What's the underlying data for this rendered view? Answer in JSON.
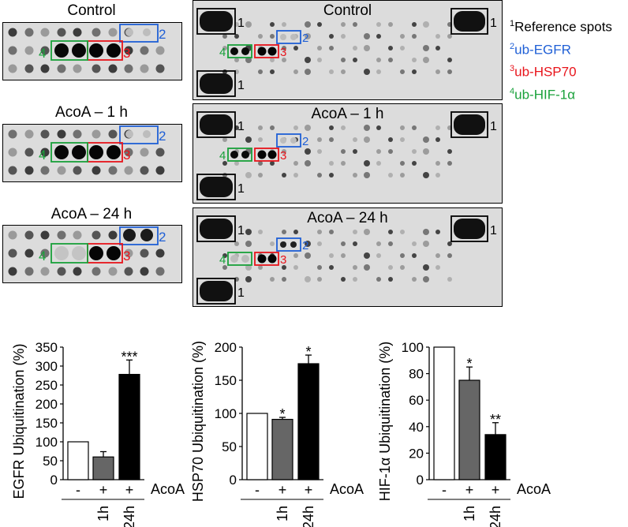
{
  "blots": {
    "small_titles": [
      "Control",
      "AcoA – 1 h",
      "AcoA – 24 h"
    ],
    "large_titles": [
      "Control",
      "AcoA – 1 h",
      "AcoA – 24 h"
    ],
    "box_labels": [
      "1",
      "2",
      "3",
      "4"
    ]
  },
  "legend": {
    "items": [
      {
        "num": "1",
        "text": "Reference spots",
        "color": "#000000"
      },
      {
        "num": "2",
        "text": "ub-EGFR",
        "color": "#1f5fd6"
      },
      {
        "num": "3",
        "text": "ub-HSP70",
        "color": "#e8141b"
      },
      {
        "num": "4",
        "text": "ub-HIF-1α",
        "color": "#19a13a"
      }
    ]
  },
  "chart_data": [
    {
      "type": "bar",
      "ylabel": "EGFR Ubiquitination (%)",
      "ylim": [
        0,
        350
      ],
      "yticks": [
        0,
        50,
        100,
        150,
        200,
        250,
        300,
        350
      ],
      "categories": [
        "-",
        "1h",
        "24h"
      ],
      "acoa_row": [
        "-",
        "+",
        "+"
      ],
      "acoa_label": "AcoA",
      "time_labels": [
        "",
        "1h",
        "24h"
      ],
      "values": [
        100,
        60,
        278
      ],
      "errors": [
        0,
        14,
        38
      ],
      "significance": [
        "",
        "",
        "***"
      ],
      "colors": [
        "#ffffff",
        "#666666",
        "#000000"
      ]
    },
    {
      "type": "bar",
      "ylabel": "HSP70 Ubiquitination (%)",
      "ylim": [
        0,
        200
      ],
      "yticks": [
        0,
        50,
        100,
        150,
        200
      ],
      "categories": [
        "-",
        "1h",
        "24h"
      ],
      "acoa_row": [
        "-",
        "+",
        "+"
      ],
      "acoa_label": "AcoA",
      "time_labels": [
        "",
        "1h",
        "24h"
      ],
      "values": [
        100,
        91,
        175
      ],
      "errors": [
        0,
        3,
        13
      ],
      "significance": [
        "",
        "*",
        "*"
      ],
      "colors": [
        "#ffffff",
        "#666666",
        "#000000"
      ]
    },
    {
      "type": "bar",
      "ylabel": "HIF-1α Ubiquitination (%)",
      "ylim": [
        0,
        100
      ],
      "yticks": [
        0,
        20,
        40,
        60,
        80,
        100
      ],
      "categories": [
        "-",
        "1h",
        "24h"
      ],
      "acoa_row": [
        "-",
        "+",
        "+"
      ],
      "acoa_label": "AcoA",
      "time_labels": [
        "",
        "1h",
        "24h"
      ],
      "values": [
        100,
        75,
        34
      ],
      "errors": [
        0,
        10,
        9
      ],
      "significance": [
        "",
        "*",
        "**"
      ],
      "colors": [
        "#ffffff",
        "#666666",
        "#000000"
      ]
    }
  ]
}
